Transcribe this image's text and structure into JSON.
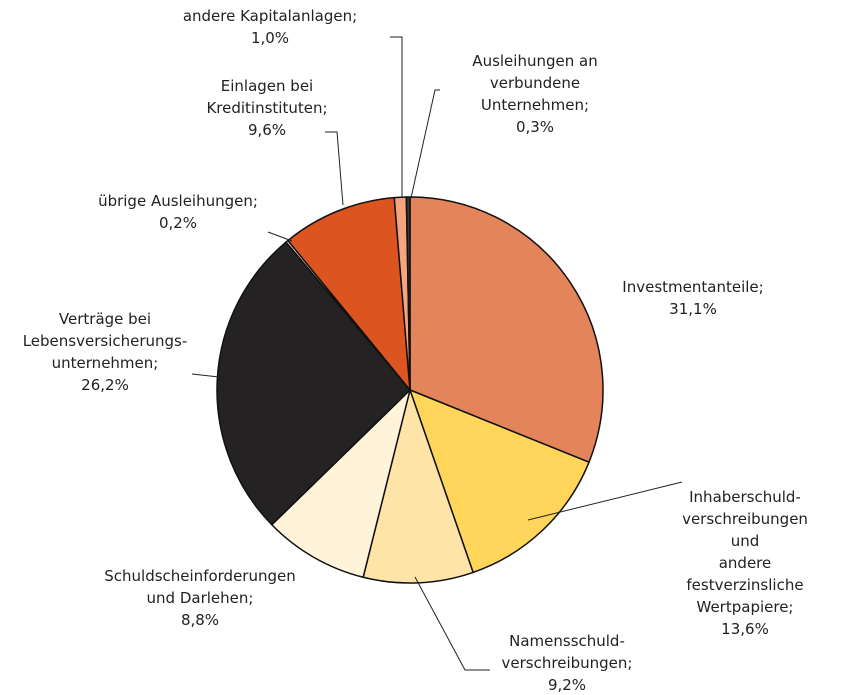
{
  "chart_data": {
    "type": "pie",
    "categories": [
      "Investmentanteile;",
      "Inhaberschuld-\nverschreibungen und\nandere festverzinsliche\nWertpapiere;",
      "Namensschuld-\nverschreibungen;",
      "Schuldscheinforderungen\nund Darlehen;",
      "Verträge bei\nLebensversicherungs-\nunternehmen;",
      "übrige Ausleihungen;",
      "Einlagen bei\nKreditinstituten;",
      "andere Kapitalanlagen;",
      "Ausleihungen an\nverbundene\nUnternehmen;"
    ],
    "values": [
      31.1,
      13.6,
      9.2,
      8.8,
      26.2,
      0.2,
      9.6,
      1.0,
      0.3
    ],
    "value_labels": [
      "31,1%",
      "13,6%",
      "9,2%",
      "8,8%",
      "26,2%",
      "0,2%",
      "9,6%",
      "1,0%",
      "0,3%"
    ],
    "colors": [
      "#e3845a",
      "#ffd55a",
      "#ffe4a8",
      "#fff3da",
      "#252223",
      "#f4e8d8",
      "#dc5420",
      "#f4a47e",
      "#3a3433"
    ]
  }
}
